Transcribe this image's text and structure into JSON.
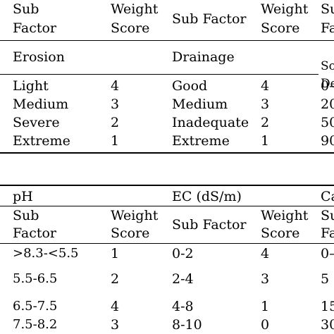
{
  "table1": {
    "header": {
      "col1": [
        "Sub",
        "Factor"
      ],
      "col2": [
        "Weight",
        "Score"
      ],
      "col3": "Sub Factor",
      "col4": [
        "Weight",
        "Score"
      ],
      "col5": [
        "Su",
        "Fa"
      ]
    },
    "groups": {
      "erosion": "Erosion",
      "drainage": "Drainage",
      "col5": [
        "So",
        "De"
      ]
    },
    "rows": [
      {
        "sub1": "Light",
        "w1": "4",
        "sub2": "Good",
        "w2": "4",
        "c5": "0–"
      },
      {
        "sub1": "Medium",
        "w1": "3",
        "sub2": "Medium",
        "w2": "3",
        "c5": "20"
      },
      {
        "sub1": "Severe",
        "w1": "2",
        "sub2": "Inadequate",
        "w2": "2",
        "c5": "50"
      },
      {
        "sub1": "Extreme",
        "w1": "1",
        "sub2": "Extreme",
        "w2": "1",
        "c5": "90"
      }
    ]
  },
  "table2": {
    "groups": {
      "ph": "pH",
      "ec": "EC (dS/m)",
      "col5": "Ca"
    },
    "header": {
      "col1": [
        "Sub",
        "Factor"
      ],
      "col2": [
        "Weight",
        "Score"
      ],
      "col3": "Sub Factor",
      "col4": [
        "Weight",
        "Score"
      ],
      "col5": [
        "Su",
        "Fa"
      ]
    },
    "rows": [
      {
        "sub1": ">8.3-<5.5",
        "w1": "1",
        "sub2": "0-2",
        "w2": "4",
        "c5": "0–"
      },
      {
        "sub1": "5.5-6.5",
        "w1": "2",
        "sub2": "2-4",
        "w2": "3",
        "c5": "5"
      },
      {
        "sub1": "6.5-7.5",
        "w1": "4",
        "sub2": "4-8",
        "w2": "1",
        "c5": "15"
      },
      {
        "sub1": "7.5-8.2",
        "w1": "3",
        "sub2": "8-10",
        "w2": "0",
        "c5": "30"
      }
    ]
  }
}
